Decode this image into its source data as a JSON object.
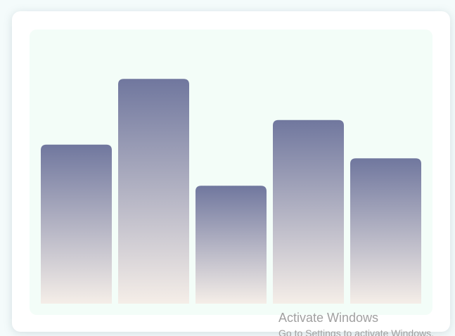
{
  "chart_data": {
    "type": "bar",
    "categories": [
      null,
      null,
      null,
      null,
      null
    ],
    "values": [
      58,
      82,
      43,
      67,
      53
    ],
    "ylim": [
      0,
      100
    ],
    "gradient": [
      "#70779e",
      "#f5eee8"
    ]
  },
  "watermark": {
    "title": "Activate Windows",
    "subtitle": "Go to Settings to activate Windows."
  }
}
